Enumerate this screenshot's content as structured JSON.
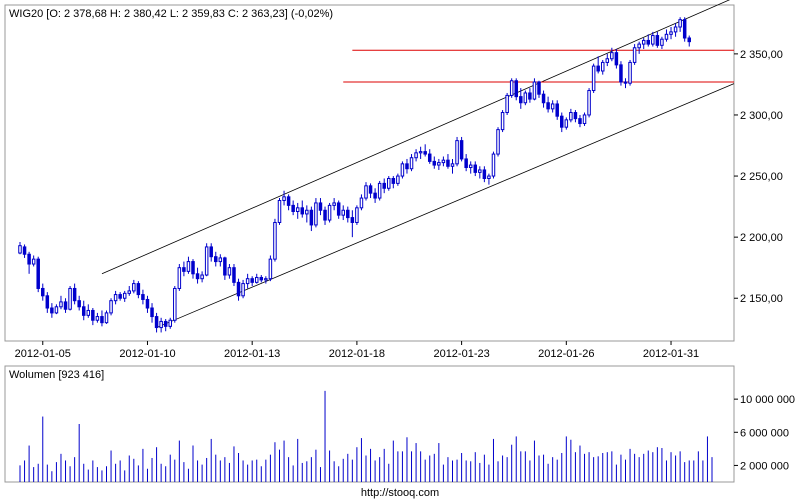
{
  "chart_data": [
    {
      "type": "candlestick",
      "title": "WIG20 [O: 2 378,68  H: 2 380,42  L: 2 359,83  C: 2 363,23] (-0,02%)",
      "ylim": [
        2115,
        2390
      ],
      "y_ticks": [
        {
          "value": 2150,
          "label": "2 150,00"
        },
        {
          "value": 2200,
          "label": "2 200,00"
        },
        {
          "value": 2250,
          "label": "2 250,00"
        },
        {
          "value": 2300,
          "label": "2 300,00"
        },
        {
          "value": 2350,
          "label": "2 350,00"
        }
      ],
      "x_ticks": [
        "2012-01-05",
        "2012-01-10",
        "2012-01-13",
        "2012-01-18",
        "2012-01-23",
        "2012-01-26",
        "2012-01-31"
      ],
      "x_tick_index": [
        5,
        28,
        51,
        74,
        97,
        120,
        143
      ],
      "n_candles": 153,
      "candles": [
        [
          2187,
          2196,
          2186,
          2193
        ],
        [
          2192,
          2194,
          2183,
          2186
        ],
        [
          2186,
          2188,
          2170,
          2178
        ],
        [
          2178,
          2185,
          2176,
          2182
        ],
        [
          2182,
          2184,
          2155,
          2158
        ],
        [
          2158,
          2162,
          2148,
          2152
        ],
        [
          2152,
          2155,
          2138,
          2142
        ],
        [
          2142,
          2146,
          2134,
          2138
        ],
        [
          2138,
          2145,
          2137,
          2143
        ],
        [
          2143,
          2152,
          2141,
          2147
        ],
        [
          2147,
          2150,
          2138,
          2141
        ],
        [
          2141,
          2160,
          2140,
          2158
        ],
        [
          2158,
          2162,
          2145,
          2148
        ],
        [
          2148,
          2152,
          2140,
          2143
        ],
        [
          2143,
          2148,
          2132,
          2136
        ],
        [
          2136,
          2145,
          2134,
          2140
        ],
        [
          2140,
          2142,
          2128,
          2132
        ],
        [
          2132,
          2138,
          2130,
          2135
        ],
        [
          2135,
          2140,
          2127,
          2130
        ],
        [
          2130,
          2140,
          2129,
          2138
        ],
        [
          2138,
          2150,
          2136,
          2148
        ],
        [
          2148,
          2156,
          2145,
          2153
        ],
        [
          2153,
          2155,
          2148,
          2150
        ],
        [
          2150,
          2156,
          2147,
          2154
        ],
        [
          2154,
          2160,
          2152,
          2156
        ],
        [
          2156,
          2165,
          2154,
          2162
        ],
        [
          2162,
          2164,
          2150,
          2153
        ],
        [
          2153,
          2157,
          2145,
          2149
        ],
        [
          2149,
          2152,
          2138,
          2142
        ],
        [
          2142,
          2146,
          2130,
          2135
        ],
        [
          2135,
          2138,
          2122,
          2126
        ],
        [
          2126,
          2134,
          2122,
          2131
        ],
        [
          2131,
          2133,
          2123,
          2127
        ],
        [
          2127,
          2134,
          2125,
          2132
        ],
        [
          2132,
          2160,
          2130,
          2158
        ],
        [
          2158,
          2178,
          2156,
          2175
        ],
        [
          2175,
          2180,
          2168,
          2172
        ],
        [
          2172,
          2184,
          2170,
          2180
        ],
        [
          2180,
          2182,
          2166,
          2170
        ],
        [
          2170,
          2175,
          2162,
          2166
        ],
        [
          2166,
          2172,
          2163,
          2169
        ],
        [
          2169,
          2195,
          2168,
          2192
        ],
        [
          2192,
          2195,
          2180,
          2184
        ],
        [
          2184,
          2188,
          2176,
          2180
        ],
        [
          2180,
          2186,
          2176,
          2183
        ],
        [
          2183,
          2184,
          2165,
          2169
        ],
        [
          2169,
          2178,
          2166,
          2175
        ],
        [
          2175,
          2178,
          2160,
          2163
        ],
        [
          2163,
          2166,
          2148,
          2152
        ],
        [
          2152,
          2165,
          2150,
          2162
        ],
        [
          2162,
          2170,
          2158,
          2166
        ],
        [
          2166,
          2168,
          2160,
          2163
        ],
        [
          2163,
          2170,
          2162,
          2167
        ],
        [
          2167,
          2169,
          2163,
          2165
        ],
        [
          2165,
          2168,
          2162,
          2166
        ],
        [
          2166,
          2185,
          2164,
          2182
        ],
        [
          2182,
          2215,
          2180,
          2212
        ],
        [
          2212,
          2232,
          2210,
          2230
        ],
        [
          2230,
          2238,
          2226,
          2233
        ],
        [
          2233,
          2235,
          2222,
          2226
        ],
        [
          2226,
          2230,
          2218,
          2221
        ],
        [
          2221,
          2228,
          2215,
          2224
        ],
        [
          2224,
          2230,
          2216,
          2219
        ],
        [
          2219,
          2226,
          2212,
          2222
        ],
        [
          2222,
          2225,
          2205,
          2210
        ],
        [
          2210,
          2232,
          2208,
          2228
        ],
        [
          2228,
          2232,
          2218,
          2222
        ],
        [
          2222,
          2225,
          2210,
          2214
        ],
        [
          2214,
          2228,
          2212,
          2226
        ],
        [
          2226,
          2232,
          2222,
          2228
        ],
        [
          2228,
          2230,
          2215,
          2218
        ],
        [
          2218,
          2226,
          2214,
          2222
        ],
        [
          2222,
          2225,
          2212,
          2216
        ],
        [
          2216,
          2222,
          2200,
          2212
        ],
        [
          2212,
          2226,
          2210,
          2224
        ],
        [
          2224,
          2235,
          2222,
          2232
        ],
        [
          2232,
          2245,
          2230,
          2242
        ],
        [
          2242,
          2244,
          2232,
          2236
        ],
        [
          2236,
          2240,
          2228,
          2232
        ],
        [
          2232,
          2246,
          2230,
          2244
        ],
        [
          2244,
          2248,
          2236,
          2240
        ],
        [
          2240,
          2250,
          2238,
          2248
        ],
        [
          2248,
          2250,
          2240,
          2244
        ],
        [
          2244,
          2252,
          2242,
          2250
        ],
        [
          2250,
          2262,
          2248,
          2260
        ],
        [
          2260,
          2264,
          2252,
          2256
        ],
        [
          2256,
          2268,
          2254,
          2265
        ],
        [
          2265,
          2272,
          2262,
          2269
        ],
        [
          2269,
          2274,
          2264,
          2270
        ],
        [
          2270,
          2276,
          2266,
          2268
        ],
        [
          2268,
          2272,
          2260,
          2262
        ],
        [
          2262,
          2266,
          2256,
          2259
        ],
        [
          2259,
          2264,
          2255,
          2261
        ],
        [
          2261,
          2266,
          2258,
          2263
        ],
        [
          2263,
          2268,
          2256,
          2258
        ],
        [
          2258,
          2264,
          2252,
          2260
        ],
        [
          2260,
          2282,
          2258,
          2279
        ],
        [
          2279,
          2282,
          2262,
          2264
        ],
        [
          2264,
          2268,
          2254,
          2257
        ],
        [
          2257,
          2262,
          2252,
          2259
        ],
        [
          2259,
          2262,
          2250,
          2253
        ],
        [
          2253,
          2258,
          2248,
          2255
        ],
        [
          2255,
          2258,
          2245,
          2248
        ],
        [
          2248,
          2252,
          2243,
          2250
        ],
        [
          2250,
          2270,
          2248,
          2268
        ],
        [
          2268,
          2290,
          2266,
          2288
        ],
        [
          2288,
          2304,
          2286,
          2302
        ],
        [
          2302,
          2318,
          2300,
          2316
        ],
        [
          2316,
          2330,
          2314,
          2328
        ],
        [
          2328,
          2330,
          2312,
          2315
        ],
        [
          2315,
          2322,
          2305,
          2310
        ],
        [
          2310,
          2320,
          2308,
          2318
        ],
        [
          2318,
          2322,
          2310,
          2313
        ],
        [
          2313,
          2330,
          2312,
          2327
        ],
        [
          2327,
          2328,
          2314,
          2317
        ],
        [
          2317,
          2320,
          2306,
          2310
        ],
        [
          2310,
          2315,
          2302,
          2305
        ],
        [
          2305,
          2312,
          2302,
          2309
        ],
        [
          2309,
          2312,
          2296,
          2299
        ],
        [
          2299,
          2302,
          2286,
          2290
        ],
        [
          2290,
          2298,
          2288,
          2296
        ],
        [
          2296,
          2305,
          2294,
          2302
        ],
        [
          2302,
          2304,
          2294,
          2297
        ],
        [
          2297,
          2300,
          2290,
          2293
        ],
        [
          2293,
          2302,
          2291,
          2300
        ],
        [
          2300,
          2322,
          2298,
          2320
        ],
        [
          2320,
          2342,
          2318,
          2340
        ],
        [
          2340,
          2348,
          2334,
          2336
        ],
        [
          2336,
          2345,
          2333,
          2343
        ],
        [
          2343,
          2350,
          2340,
          2346
        ],
        [
          2346,
          2355,
          2344,
          2351
        ],
        [
          2351,
          2354,
          2338,
          2341
        ],
        [
          2341,
          2344,
          2324,
          2327
        ],
        [
          2327,
          2330,
          2322,
          2326
        ],
        [
          2326,
          2345,
          2324,
          2343
        ],
        [
          2343,
          2358,
          2341,
          2355
        ],
        [
          2355,
          2360,
          2350,
          2358
        ],
        [
          2358,
          2363,
          2354,
          2361
        ],
        [
          2361,
          2366,
          2356,
          2358
        ],
        [
          2358,
          2368,
          2356,
          2365
        ],
        [
          2365,
          2368,
          2355,
          2357
        ],
        [
          2357,
          2364,
          2354,
          2362
        ],
        [
          2362,
          2370,
          2360,
          2366
        ],
        [
          2366,
          2372,
          2362,
          2368
        ],
        [
          2368,
          2375,
          2364,
          2372
        ],
        [
          2372,
          2380,
          2368,
          2378
        ],
        [
          2378,
          2380,
          2360,
          2363
        ],
        [
          2363,
          2365,
          2356,
          2360
        ]
      ],
      "channel_lines": [
        {
          "from": [
            18,
            2170
          ],
          "to": [
            152,
            2388
          ]
        },
        {
          "from": [
            30,
            2126
          ],
          "to": [
            152,
            2318
          ]
        }
      ],
      "resistance_lines": [
        {
          "value": 2353,
          "from_index": 73
        },
        {
          "value": 2327,
          "from_index": 71
        }
      ],
      "colors": {
        "candle": "#0000cc",
        "channel": "#000000",
        "resistance": "#dd0000",
        "border": "#999999"
      }
    },
    {
      "type": "bar",
      "title": "Wolumen [923 416]",
      "ylim": [
        0,
        14000000
      ],
      "y_ticks": [
        {
          "value": 2000000,
          "label": "2 000 000"
        },
        {
          "value": 6000000,
          "label": "6 000 000"
        },
        {
          "value": 10000000,
          "label": "10 000 000"
        }
      ],
      "values": [
        2000000,
        2600000,
        4400000,
        1800000,
        2200000,
        7900000,
        2100000,
        1300000,
        2400000,
        3400000,
        2600000,
        1900000,
        3000000,
        7000000,
        2200000,
        1500000,
        2600000,
        1800000,
        1400000,
        1900000,
        3800000,
        2200000,
        2600000,
        1400000,
        3200000,
        2800000,
        2000000,
        4000000,
        1600000,
        2900000,
        4200000,
        2200000,
        1900000,
        3300000,
        2700000,
        5000000,
        2400000,
        1600000,
        4400000,
        2600000,
        2100000,
        2900000,
        5200000,
        3300000,
        2600000,
        3000000,
        2300000,
        4300000,
        3500000,
        2600000,
        2100000,
        2600000,
        2700000,
        1900000,
        2700000,
        3300000,
        4800000,
        3900000,
        5000000,
        3000000,
        2000000,
        5200000,
        2300000,
        2500000,
        3000000,
        3900000,
        1800000,
        11000000,
        3800000,
        2500000,
        1900000,
        2800000,
        3400000,
        2700000,
        4200000,
        5300000,
        3200000,
        4000000,
        2600000,
        3000000,
        4000000,
        2200000,
        5000000,
        3700000,
        3700000,
        5400000,
        3700000,
        4700000,
        3700000,
        2700000,
        3200000,
        3400000,
        4700000,
        2100000,
        3000000,
        2600000,
        2700000,
        3500000,
        2600000,
        2500000,
        3600000,
        2300000,
        3300000,
        2100000,
        5200000,
        2500000,
        3200000,
        3000000,
        4500000,
        5500000,
        3700000,
        3700000,
        2600000,
        5000000,
        3200000,
        3300000,
        2200000,
        3000000,
        2700000,
        3500000,
        5500000,
        5100000,
        3600000,
        4400000,
        3400000,
        3600000,
        3000000,
        3100000,
        3500000,
        3600000,
        3700000,
        2100000,
        3300000,
        2700000,
        4000000,
        3400000,
        3000000,
        3400000,
        3800000,
        3600000,
        4200000,
        4100000,
        2600000,
        3600000,
        3200000,
        3700000,
        2400000,
        2600000,
        2600000,
        3700000,
        2600000,
        5500000,
        3000000
      ],
      "colors": {
        "bar": "#0000cc",
        "border": "#999999"
      }
    }
  ],
  "footer": {
    "url": "http://stooq.com"
  }
}
